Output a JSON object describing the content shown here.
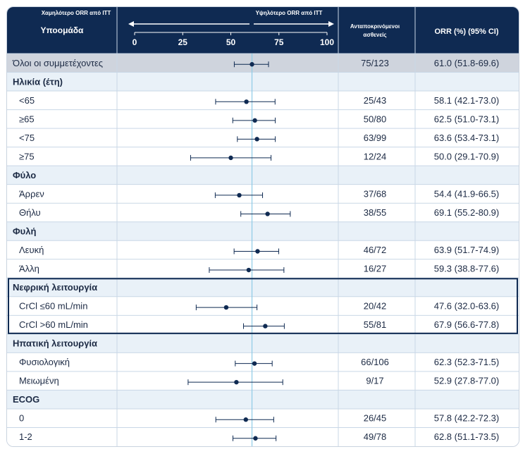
{
  "colors": {
    "header_bg": "#0f2a52",
    "overall_bg": "#cfd4dd",
    "group_bg": "#e9f1f8",
    "row_bg": "#ffffff",
    "grid_line": "#c9d7e6",
    "ref_line": "#8ecbe6",
    "marker": "#0f2a52",
    "highlight_border": "#0f2a52"
  },
  "header": {
    "subgroup_label": "Υποομάδα",
    "lower_label": "Χαμηλότερο ORR από ITT",
    "higher_label": "Υψηλότερο ORR από ITT",
    "responders_label_line1": "Ανταποκρινόμενοι",
    "responders_label_line2": "ασθενείς",
    "orr_label": "ORR (%) (95% CI)"
  },
  "chart_data": {
    "type": "forest",
    "x_ticks": [
      0,
      25,
      50,
      75,
      100
    ],
    "xlim": [
      0,
      100
    ],
    "reference_value": 61.0,
    "rows": [
      {
        "kind": "overall",
        "label": "Όλοι οι συμμετέχοντες",
        "responders": "75/123",
        "orr": 61.0,
        "lo": 51.8,
        "hi": 69.6,
        "orr_text": "61.0 (51.8-69.6)"
      },
      {
        "kind": "group",
        "label": "Ηλικία (έτη)"
      },
      {
        "kind": "row",
        "label": "<65",
        "responders": "25/43",
        "orr": 58.1,
        "lo": 42.1,
        "hi": 73.0,
        "orr_text": "58.1 (42.1-73.0)"
      },
      {
        "kind": "row",
        "label": "≥65",
        "responders": "50/80",
        "orr": 62.5,
        "lo": 51.0,
        "hi": 73.1,
        "orr_text": "62.5 (51.0-73.1)"
      },
      {
        "kind": "row",
        "label": "<75",
        "responders": "63/99",
        "orr": 63.6,
        "lo": 53.4,
        "hi": 73.1,
        "orr_text": "63.6 (53.4-73.1)"
      },
      {
        "kind": "row",
        "label": "≥75",
        "responders": "12/24",
        "orr": 50.0,
        "lo": 29.1,
        "hi": 70.9,
        "orr_text": "50.0 (29.1-70.9)"
      },
      {
        "kind": "group",
        "label": "Φύλο"
      },
      {
        "kind": "row",
        "label": "Άρρεν",
        "responders": "37/68",
        "orr": 54.4,
        "lo": 41.9,
        "hi": 66.5,
        "orr_text": "54.4 (41.9-66.5)"
      },
      {
        "kind": "row",
        "label": "Θήλυ",
        "responders": "38/55",
        "orr": 69.1,
        "lo": 55.2,
        "hi": 80.9,
        "orr_text": "69.1 (55.2-80.9)"
      },
      {
        "kind": "group",
        "label": "Φυλή"
      },
      {
        "kind": "row",
        "label": "Λευκή",
        "responders": "46/72",
        "orr": 63.9,
        "lo": 51.7,
        "hi": 74.9,
        "orr_text": "63.9 (51.7-74.9)"
      },
      {
        "kind": "row",
        "label": "Άλλη",
        "responders": "16/27",
        "orr": 59.3,
        "lo": 38.8,
        "hi": 77.6,
        "orr_text": "59.3 (38.8-77.6)"
      },
      {
        "kind": "group",
        "label": "Νεφρική λειτουργία",
        "highlight": true
      },
      {
        "kind": "row",
        "label": "CrCl ≤60 mL/min",
        "responders": "20/42",
        "orr": 47.6,
        "lo": 32.0,
        "hi": 63.6,
        "orr_text": "47.6 (32.0-63.6)",
        "highlight": true
      },
      {
        "kind": "row",
        "label": "CrCl >60 mL/min",
        "responders": "55/81",
        "orr": 67.9,
        "lo": 56.6,
        "hi": 77.8,
        "orr_text": "67.9 (56.6-77.8)",
        "highlight": true
      },
      {
        "kind": "group",
        "label": "Ηπατική λειτουργία"
      },
      {
        "kind": "row",
        "label": "Φυσιολογική",
        "responders": "66/106",
        "orr": 62.3,
        "lo": 52.3,
        "hi": 71.5,
        "orr_text": "62.3 (52.3-71.5)"
      },
      {
        "kind": "row",
        "label": "Μειωμένη",
        "responders": "9/17",
        "orr": 52.9,
        "lo": 27.8,
        "hi": 77.0,
        "orr_text": "52.9 (27.8-77.0)"
      },
      {
        "kind": "group",
        "label": "ECOG"
      },
      {
        "kind": "row",
        "label": "0",
        "responders": "26/45",
        "orr": 57.8,
        "lo": 42.2,
        "hi": 72.3,
        "orr_text": "57.8 (42.2-72.3)"
      },
      {
        "kind": "row",
        "label": "1-2",
        "responders": "49/78",
        "orr": 62.8,
        "lo": 51.1,
        "hi": 73.5,
        "orr_text": "62.8 (51.1-73.5)"
      }
    ]
  }
}
